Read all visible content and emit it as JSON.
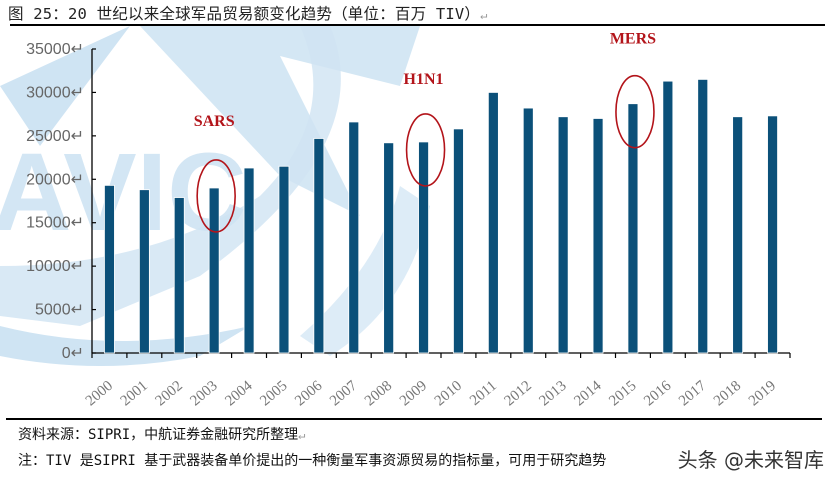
{
  "header": {
    "title": "图 25：20 世纪以来全球军品贸易额变化趋势（单位：百万 TIV）"
  },
  "footer": {
    "source": "资料来源：SIPRI，中航证券金融研究所整理",
    "note": "注：TIV 是SIPRI 基于武器装备单价提出的一种衡量军事资源贸易的指标量，可用于研究趋势",
    "brand": "头条 @未来智库"
  },
  "colors": {
    "bar": "#0b5079",
    "annotation": "#b3141a",
    "watermark": "#cfe4f3"
  },
  "watermark_text": "AVIC",
  "chart_data": {
    "type": "bar",
    "title": "20 世纪以来全球军品贸易额变化趋势（单位：百万 TIV）",
    "xlabel": "",
    "ylabel": "",
    "ylim": [
      0,
      35000
    ],
    "yticks": [
      0,
      5000,
      10000,
      15000,
      20000,
      25000,
      30000,
      35000
    ],
    "grid": false,
    "legend": null,
    "categories": [
      "2000",
      "2001",
      "2002",
      "2003",
      "2004",
      "2005",
      "2006",
      "2007",
      "2008",
      "2009",
      "2010",
      "2011",
      "2012",
      "2013",
      "2014",
      "2015",
      "2016",
      "2017",
      "2018",
      "2019"
    ],
    "values": [
      19300,
      18800,
      17900,
      19000,
      21300,
      21500,
      24700,
      26600,
      24200,
      24300,
      25800,
      30000,
      28200,
      27200,
      27000,
      28700,
      31300,
      31500,
      27200,
      27300
    ],
    "annotations": [
      {
        "label": "SARS",
        "year": "2003"
      },
      {
        "label": "H1N1",
        "year": "2009"
      },
      {
        "label": "MERS",
        "year": "2015"
      }
    ]
  }
}
